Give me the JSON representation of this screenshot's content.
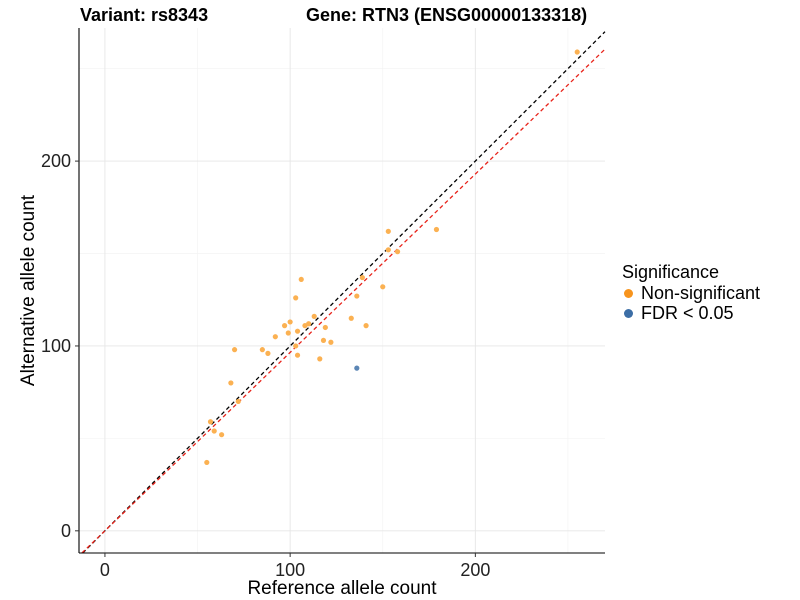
{
  "chart_data": {
    "type": "scatter",
    "title_left": "Variant: rs8343",
    "title_right": "Gene: RTN3 (ENSG00000133318)",
    "xlabel": "Reference allele count",
    "ylabel": "Alternative allele count",
    "xlim": [
      -14,
      270
    ],
    "ylim": [
      -12,
      272
    ],
    "x_ticks": [
      0,
      100,
      200
    ],
    "y_ticks": [
      0,
      100,
      200
    ],
    "grid": true,
    "legend": {
      "title": "Significance",
      "position": "right",
      "entries": [
        {
          "label": "Non-significant",
          "color": "#F7941D"
        },
        {
          "label": "FDR < 0.05",
          "color": "#3C6EA6"
        }
      ]
    },
    "reference_lines": [
      {
        "kind": "identity",
        "slope": 1,
        "intercept": 0,
        "color": "#000000",
        "dash": true
      },
      {
        "kind": "fit",
        "slope": 0.965,
        "intercept": 0,
        "color": "#E8231A",
        "dash": true
      }
    ],
    "series": [
      {
        "name": "Non-significant",
        "color": "#FBB152",
        "points": [
          [
            55,
            37
          ],
          [
            57,
            59
          ],
          [
            59,
            54
          ],
          [
            63,
            52
          ],
          [
            68,
            80
          ],
          [
            70,
            98
          ],
          [
            72,
            70
          ],
          [
            85,
            98
          ],
          [
            88,
            96
          ],
          [
            92,
            105
          ],
          [
            97,
            111
          ],
          [
            99,
            107
          ],
          [
            100,
            113
          ],
          [
            103,
            100
          ],
          [
            103,
            126
          ],
          [
            104,
            108
          ],
          [
            104,
            95
          ],
          [
            106,
            136
          ],
          [
            108,
            111
          ],
          [
            110,
            112
          ],
          [
            113,
            116
          ],
          [
            116,
            93
          ],
          [
            118,
            103
          ],
          [
            119,
            110
          ],
          [
            122,
            102
          ],
          [
            133,
            115
          ],
          [
            136,
            127
          ],
          [
            139,
            137
          ],
          [
            141,
            111
          ],
          [
            150,
            132
          ],
          [
            153,
            152
          ],
          [
            153,
            162
          ],
          [
            158,
            151
          ],
          [
            179,
            163
          ],
          [
            255,
            259
          ]
        ]
      },
      {
        "name": "FDR < 0.05",
        "color": "#5C86B5",
        "points": [
          [
            136,
            88
          ]
        ]
      }
    ]
  }
}
